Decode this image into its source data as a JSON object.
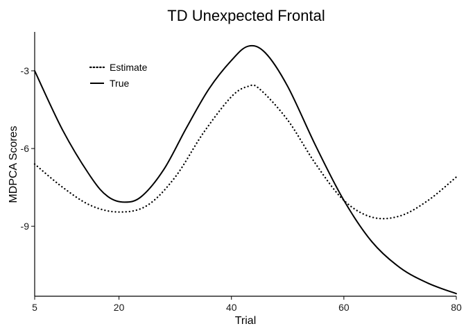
{
  "chart_data": {
    "type": "line",
    "title": "TD Unexpected Frontal",
    "xlabel": "Trial",
    "ylabel": "MDPCA Scores",
    "xlim": [
      5,
      80
    ],
    "ylim": [
      -11.7,
      -1.5
    ],
    "x_ticks": [
      5,
      20,
      40,
      60,
      80
    ],
    "y_ticks": [
      -3,
      -6,
      -9
    ],
    "grid": false,
    "legend_position": "top-left",
    "series": [
      {
        "name": "Estimate",
        "style": "dotted",
        "color": "#000000",
        "points": [
          [
            5,
            -6.6
          ],
          [
            10,
            -7.5
          ],
          [
            15,
            -8.2
          ],
          [
            20,
            -8.45
          ],
          [
            25,
            -8.2
          ],
          [
            30,
            -7.1
          ],
          [
            35,
            -5.4
          ],
          [
            40,
            -4.0
          ],
          [
            43,
            -3.6
          ],
          [
            45,
            -3.7
          ],
          [
            50,
            -4.9
          ],
          [
            55,
            -6.6
          ],
          [
            60,
            -8.0
          ],
          [
            65,
            -8.65
          ],
          [
            70,
            -8.6
          ],
          [
            75,
            -8.0
          ],
          [
            80,
            -7.1
          ]
        ]
      },
      {
        "name": "True",
        "style": "solid",
        "color": "#000000",
        "points": [
          [
            5,
            -3.0
          ],
          [
            10,
            -5.3
          ],
          [
            15,
            -7.1
          ],
          [
            18,
            -7.85
          ],
          [
            21,
            -8.07
          ],
          [
            24,
            -7.85
          ],
          [
            28,
            -6.8
          ],
          [
            32,
            -5.2
          ],
          [
            36,
            -3.7
          ],
          [
            40,
            -2.6
          ],
          [
            43,
            -2.05
          ],
          [
            46,
            -2.3
          ],
          [
            50,
            -3.6
          ],
          [
            55,
            -5.9
          ],
          [
            60,
            -8.0
          ],
          [
            65,
            -9.6
          ],
          [
            70,
            -10.6
          ],
          [
            75,
            -11.2
          ],
          [
            80,
            -11.6
          ]
        ]
      }
    ]
  }
}
